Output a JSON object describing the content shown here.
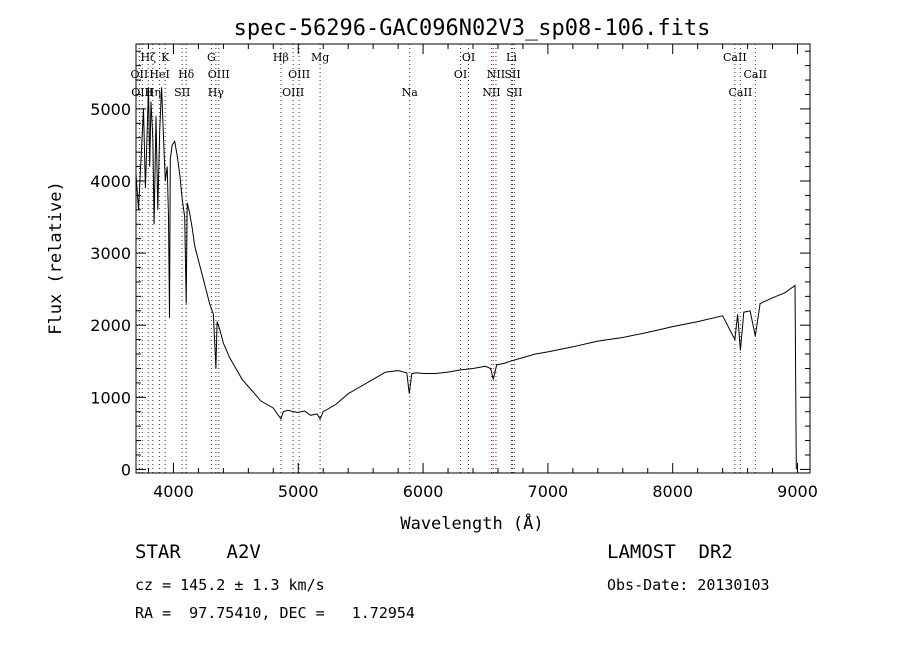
{
  "chart_data": {
    "type": "line",
    "title": "spec-56296-GAC096N02V3_sp08-106.fits",
    "xlabel": "Wavelength (Å)",
    "ylabel": "Flux (relative)",
    "xlim": [
      3700,
      9100
    ],
    "ylim": [
      -50,
      5900
    ],
    "xticks": [
      4000,
      5000,
      6000,
      7000,
      8000,
      9000
    ],
    "yticks": [
      0,
      1000,
      2000,
      3000,
      4000,
      5000
    ],
    "grid": false,
    "series": [
      {
        "x": [
          3700,
          3720,
          3740,
          3760,
          3775,
          3790,
          3800,
          3810,
          3820,
          3835,
          3845,
          3860,
          3875,
          3890,
          3905,
          3920,
          3935,
          3950,
          3960,
          3968,
          3975,
          3990,
          4010,
          4030,
          4050,
          4070,
          4090,
          4102,
          4110,
          4130,
          4150,
          4170,
          4200,
          4230,
          4260,
          4290,
          4320,
          4340,
          4350,
          4370,
          4400,
          4450,
          4500,
          4550,
          4600,
          4650,
          4700,
          4750,
          4800,
          4861,
          4880,
          4920,
          4960,
          5000,
          5050,
          5100,
          5150,
          5175,
          5200,
          5300,
          5400,
          5500,
          5600,
          5700,
          5800,
          5870,
          5890,
          5910,
          5950,
          6000,
          6100,
          6200,
          6300,
          6400,
          6500,
          6540,
          6563,
          6590,
          6650,
          6700,
          6800,
          6900,
          7000,
          7200,
          7400,
          7600,
          7800,
          8000,
          8200,
          8400,
          8498,
          8520,
          8542,
          8570,
          8620,
          8662,
          8700,
          8800,
          8900,
          8980,
          8990
        ],
        "y": [
          4100,
          3600,
          4300,
          5000,
          3900,
          4700,
          5300,
          4200,
          5100,
          4600,
          3400,
          4900,
          3600,
          4700,
          5300,
          4600,
          4000,
          4200,
          3500,
          2100,
          4300,
          4500,
          4550,
          4350,
          4100,
          3750,
          3500,
          2300,
          3700,
          3550,
          3350,
          3100,
          2900,
          2700,
          2500,
          2300,
          2150,
          1400,
          2050,
          1950,
          1750,
          1550,
          1400,
          1250,
          1150,
          1050,
          950,
          900,
          850,
          700,
          800,
          820,
          800,
          790,
          810,
          750,
          770,
          700,
          800,
          900,
          1050,
          1150,
          1250,
          1350,
          1370,
          1340,
          1050,
          1330,
          1340,
          1330,
          1330,
          1350,
          1380,
          1400,
          1430,
          1400,
          1250,
          1450,
          1470,
          1500,
          1550,
          1600,
          1630,
          1700,
          1780,
          1830,
          1900,
          1980,
          2050,
          2130,
          1800,
          2150,
          1650,
          2180,
          2200,
          1850,
          2300,
          2380,
          2450,
          2550,
          0
        ]
      }
    ],
    "lines": [
      {
        "x": 3727,
        "label": "OII",
        "row": 1,
        "color": "#333333"
      },
      {
        "x": 3750,
        "label": "OIII",
        "row": 2,
        "color": "#333333"
      },
      {
        "x": 3798,
        "label": "Hζ",
        "row": 0,
        "color": "#333333"
      },
      {
        "x": 3835,
        "label": "Hη",
        "row": 2,
        "color": "#333333"
      },
      {
        "x": 3889,
        "label": "HeI",
        "row": 1,
        "color": "#333333"
      },
      {
        "x": 3934,
        "label": "K",
        "row": 0,
        "color": "#333333"
      },
      {
        "x": 4102,
        "label": "Hδ",
        "row": 1,
        "color": "#333333"
      },
      {
        "x": 4070,
        "label": "SII",
        "row": 2,
        "color": "#333333"
      },
      {
        "x": 4304,
        "label": "G",
        "row": 0,
        "color": "#333333"
      },
      {
        "x": 4363,
        "label": "OIII",
        "row": 1,
        "color": "#333333"
      },
      {
        "x": 4340,
        "label": "Hγ",
        "row": 2,
        "color": "#333333"
      },
      {
        "x": 4861,
        "label": "Hβ",
        "row": 0,
        "color": "#333333"
      },
      {
        "x": 4959,
        "label": "OIII",
        "row": 2,
        "color": "#333333"
      },
      {
        "x": 5007,
        "label": "OIII",
        "row": 1,
        "color": "#333333"
      },
      {
        "x": 5175,
        "label": "Mg",
        "row": 0,
        "color": "#333333"
      },
      {
        "x": 5893,
        "label": "Na",
        "row": 2,
        "color": "#333333"
      },
      {
        "x": 6300,
        "label": "OI",
        "row": 1,
        "color": "#333333"
      },
      {
        "x": 6364,
        "label": "OI",
        "row": 0,
        "color": "#333333"
      },
      {
        "x": 6548,
        "label": "NII",
        "row": 2,
        "color": "#333333"
      },
      {
        "x": 6563,
        "label": "",
        "row": 1,
        "color": "#cc0000"
      },
      {
        "x": 6584,
        "label": "NII",
        "row": 1,
        "color": "#333333"
      },
      {
        "x": 6708,
        "label": "Li",
        "row": 0,
        "color": "#333333"
      },
      {
        "x": 6717,
        "label": "SII",
        "row": 1,
        "color": "#333333"
      },
      {
        "x": 6731,
        "label": "SII",
        "row": 2,
        "color": "#333333"
      },
      {
        "x": 8498,
        "label": "CaII",
        "row": 0,
        "color": "#333333"
      },
      {
        "x": 8542,
        "label": "CaII",
        "row": 2,
        "color": "#333333"
      },
      {
        "x": 8662,
        "label": "CaII",
        "row": 1,
        "color": "#333333"
      }
    ]
  },
  "info": {
    "object": "STAR    A2V",
    "cz": "cz = 145.2 ± 1.3 km/s",
    "coords": "RA =  97.75410, DEC =   1.72954",
    "survey": "LAMOST  DR2",
    "obsdate": "Obs-Date: 20130103"
  }
}
